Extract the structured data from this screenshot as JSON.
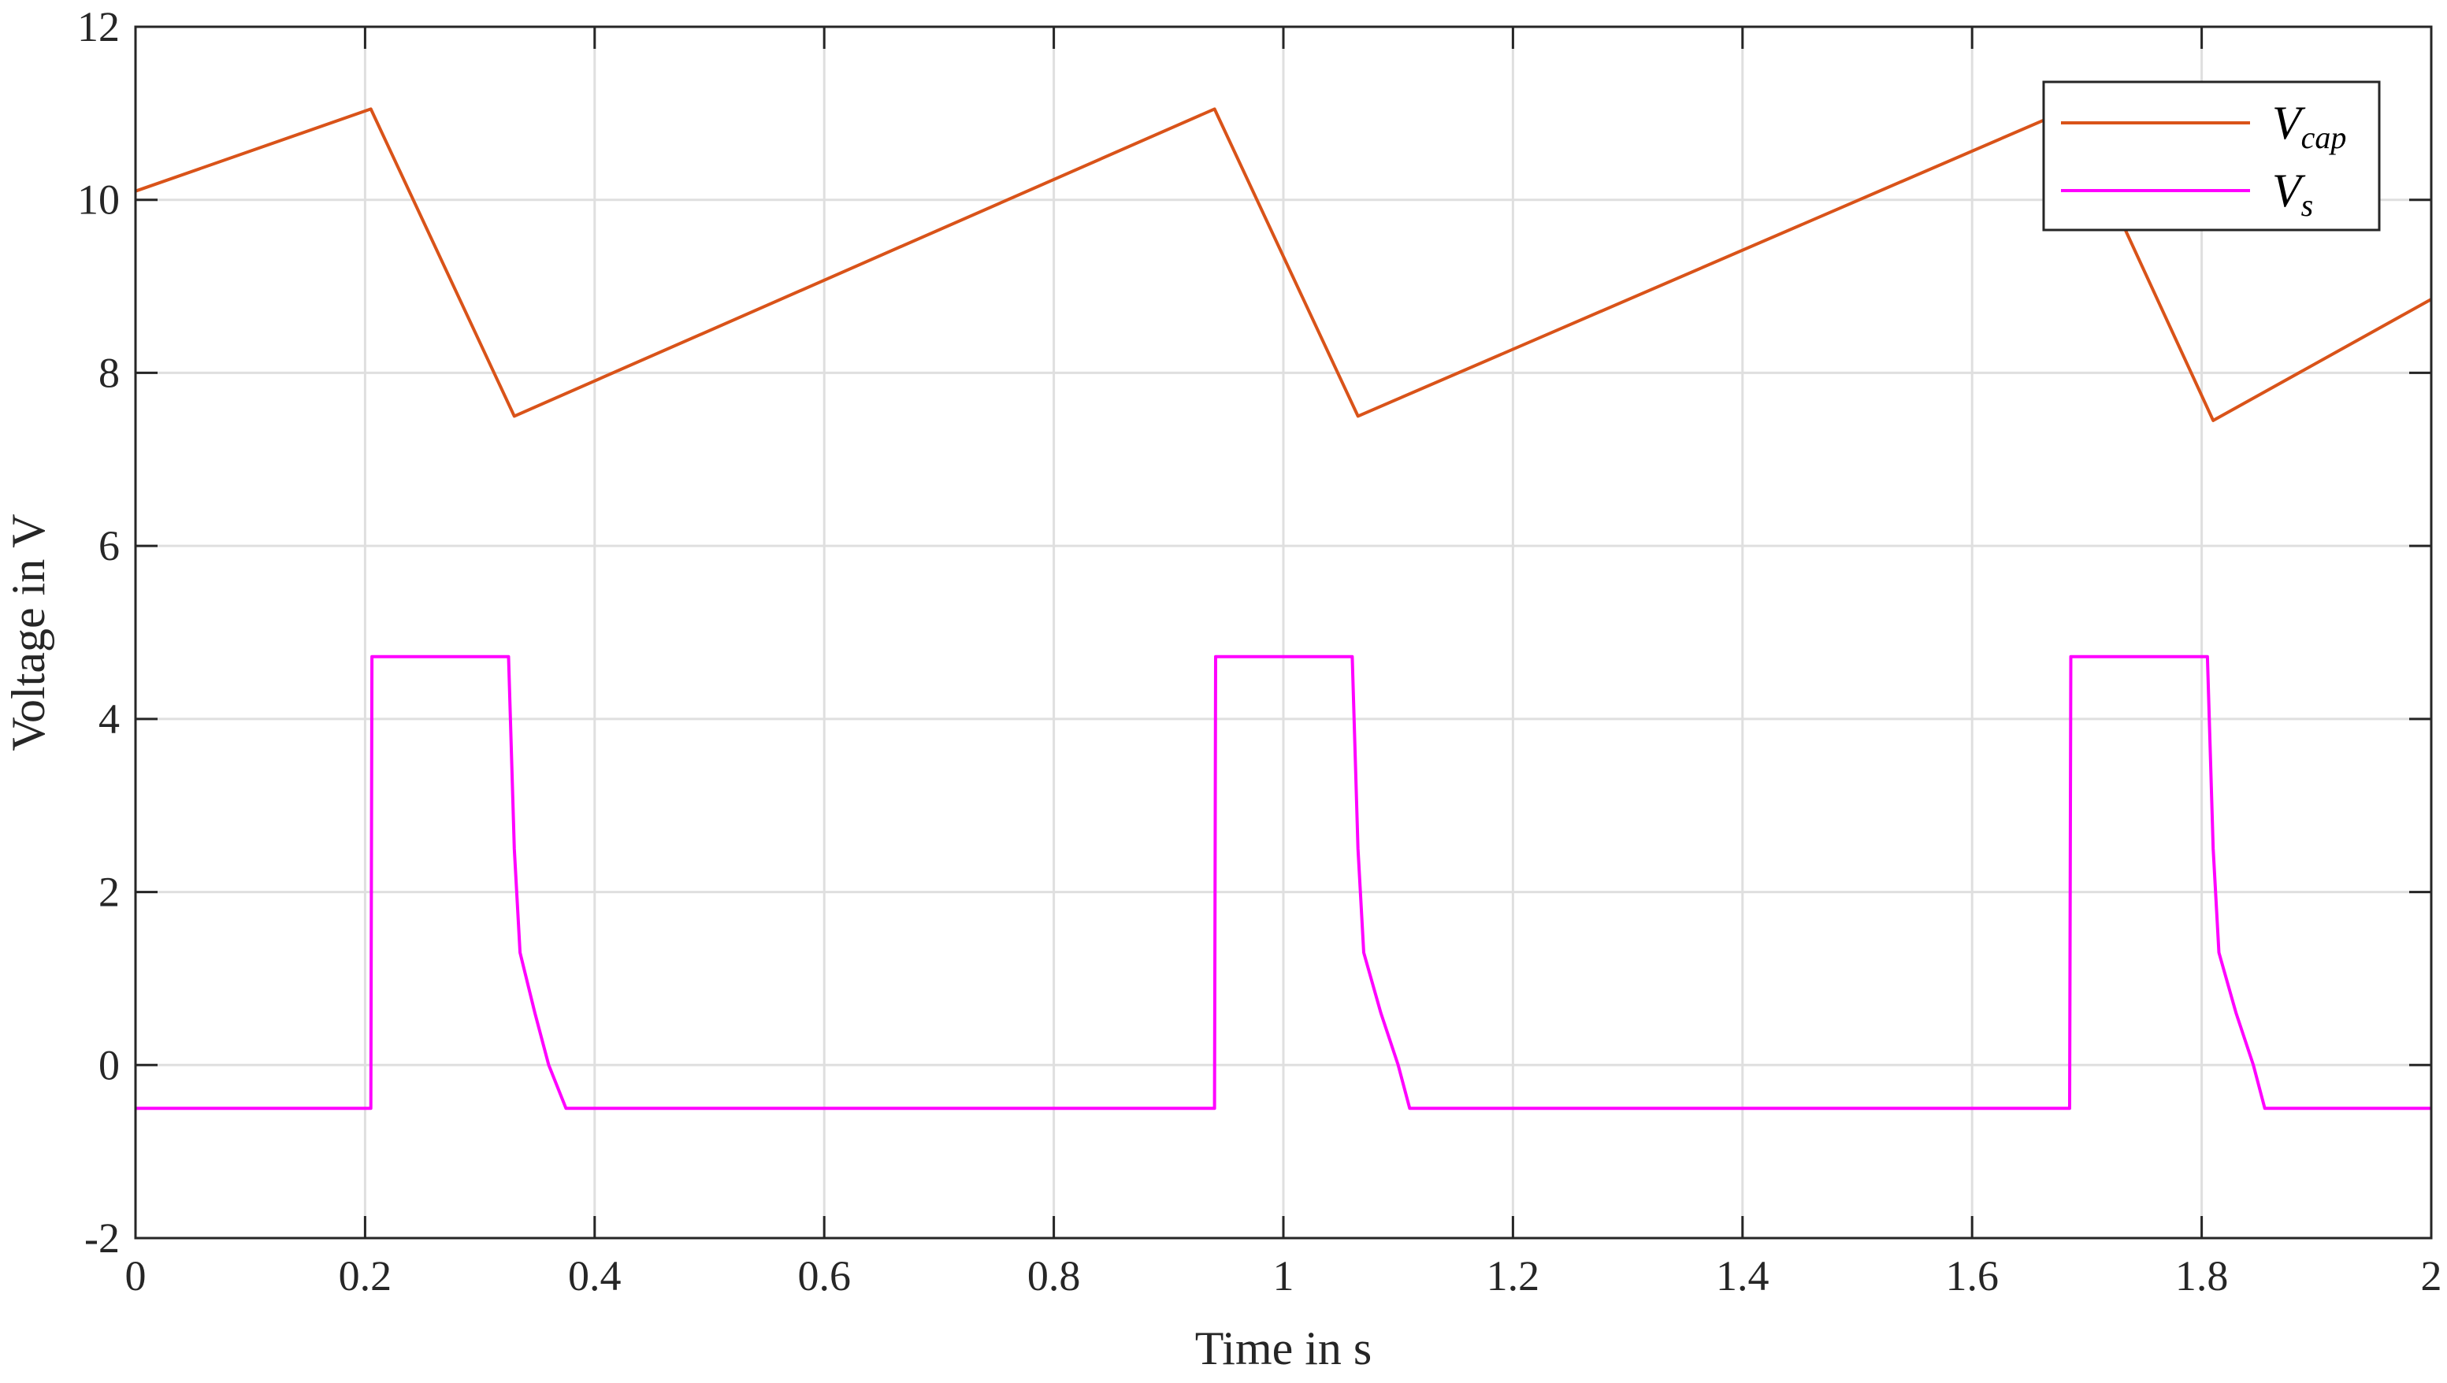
{
  "chart_data": {
    "type": "line",
    "xlabel": "Time in s",
    "ylabel": "Voltage in V",
    "xlim": [
      0,
      2
    ],
    "ylim": [
      -2,
      12
    ],
    "xticks": [
      0,
      0.2,
      0.4,
      0.6,
      0.8,
      1,
      1.2,
      1.4,
      1.6,
      1.8,
      2
    ],
    "xtick_labels": [
      "0",
      "0.2",
      "0.4",
      "0.6",
      "0.8",
      "1",
      "1.2",
      "1.4",
      "1.6",
      "1.8",
      "2"
    ],
    "yticks": [
      -2,
      0,
      2,
      4,
      6,
      8,
      10,
      12
    ],
    "ytick_labels": [
      "-2",
      "0",
      "2",
      "4",
      "6",
      "8",
      "10",
      "12"
    ],
    "grid": true,
    "legend_position": "top-right",
    "series": [
      {
        "name_base": "V",
        "name_sub": "cap",
        "color": "#D95319",
        "x": [
          0,
          0.205,
          0.33,
          0.94,
          1.065,
          1.685,
          1.81,
          2.0
        ],
        "y": [
          10.1,
          11.05,
          7.5,
          11.05,
          7.5,
          11.05,
          7.45,
          8.85
        ]
      },
      {
        "name_base": "V",
        "name_sub": "s",
        "color": "#FF00FF",
        "x": [
          0,
          0.205,
          0.206,
          0.325,
          0.33,
          0.335,
          0.348,
          0.36,
          0.375,
          0.94,
          0.941,
          1.06,
          1.065,
          1.07,
          1.085,
          1.1,
          1.11,
          1.685,
          1.686,
          1.805,
          1.81,
          1.815,
          1.83,
          1.845,
          1.855,
          2.0
        ],
        "y": [
          -0.5,
          -0.5,
          4.72,
          4.72,
          2.5,
          1.3,
          0.6,
          0.0,
          -0.5,
          -0.5,
          4.72,
          4.72,
          2.5,
          1.3,
          0.6,
          0.0,
          -0.5,
          -0.5,
          4.72,
          4.72,
          2.5,
          1.3,
          0.6,
          0.0,
          -0.5,
          -0.5
        ]
      }
    ]
  }
}
